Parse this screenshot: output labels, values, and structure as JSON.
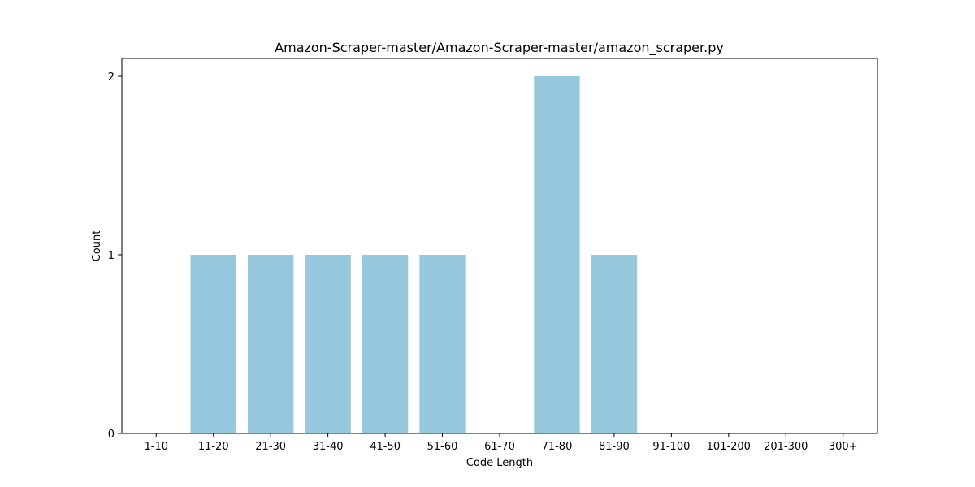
{
  "chart_data": {
    "type": "bar",
    "title": "Amazon-Scraper-master/Amazon-Scraper-master/amazon_scraper.py",
    "xlabel": "Code Length",
    "ylabel": "Count",
    "categories": [
      "1-10",
      "11-20",
      "21-30",
      "31-40",
      "41-50",
      "51-60",
      "61-70",
      "71-80",
      "81-90",
      "91-100",
      "101-200",
      "201-300",
      "300+"
    ],
    "values": [
      0,
      1,
      1,
      1,
      1,
      1,
      0,
      2,
      1,
      0,
      0,
      0,
      0
    ],
    "yticks": [
      0,
      1,
      2
    ],
    "ylim": [
      0,
      2.1
    ],
    "grid": false,
    "legend": "none",
    "bar_color": "#96c9de"
  }
}
